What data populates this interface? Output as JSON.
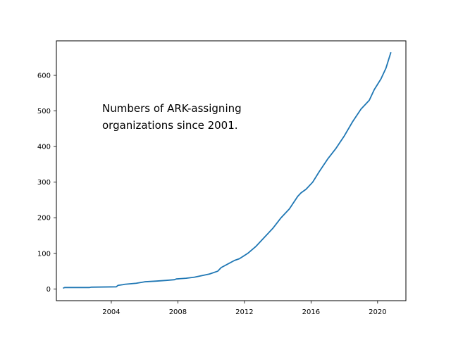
{
  "chart_data": {
    "type": "line",
    "title": "",
    "xlabel": "",
    "ylabel": "",
    "annotation": [
      "Numbers of ARK-assigning",
      "organizations since 2001."
    ],
    "xlim": [
      2000.7,
      2021.7
    ],
    "ylim": [
      -33,
      697
    ],
    "x_ticks": [
      2004,
      2008,
      2012,
      2016,
      2020
    ],
    "y_ticks": [
      0,
      100,
      200,
      300,
      400,
      500,
      600
    ],
    "grid": false,
    "legend": "none",
    "series": [
      {
        "color": "#1f77b4",
        "x": [
          2001.1,
          2001.2,
          2002.0,
          2002.7,
          2002.8,
          2004.3,
          2004.4,
          2004.7,
          2004.8,
          2005.5,
          2006.0,
          2006.7,
          2007.3,
          2007.8,
          2007.9,
          2008.5,
          2009.0,
          2009.4,
          2009.9,
          2010.4,
          2010.6,
          2011.0,
          2011.4,
          2011.7,
          2012.2,
          2012.7,
          2013.2,
          2013.7,
          2014.2,
          2014.7,
          2015.2,
          2015.4,
          2015.7,
          2016.1,
          2016.5,
          2017.0,
          2017.5,
          2018.0,
          2018.5,
          2019.0,
          2019.5,
          2019.8,
          2020.2,
          2020.5,
          2020.7,
          2020.8
        ],
        "y": [
          2,
          4,
          4,
          4,
          5,
          6,
          10,
          12,
          13,
          16,
          20,
          22,
          24,
          26,
          28,
          30,
          33,
          37,
          42,
          50,
          60,
          70,
          80,
          85,
          100,
          120,
          145,
          170,
          200,
          225,
          260,
          270,
          280,
          300,
          330,
          365,
          395,
          430,
          470,
          505,
          530,
          560,
          590,
          620,
          650,
          665
        ]
      }
    ]
  }
}
